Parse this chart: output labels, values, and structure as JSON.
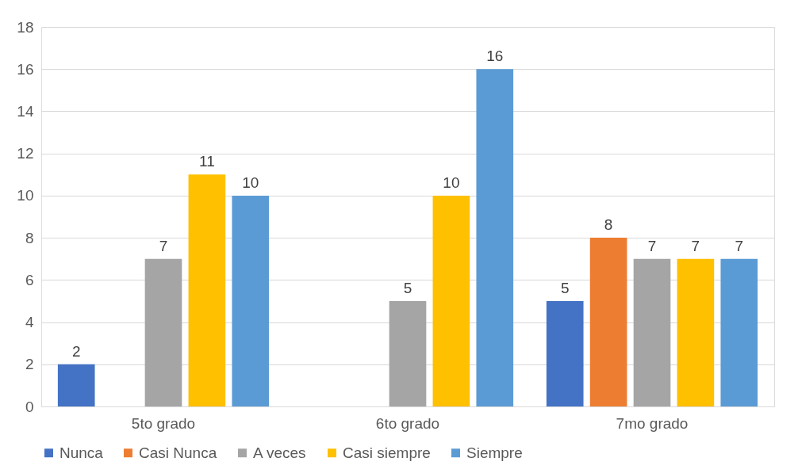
{
  "chart_data": {
    "type": "bar",
    "categories": [
      "5to grado",
      "6to grado",
      "7mo grado"
    ],
    "series": [
      {
        "name": "Nunca",
        "color": "#4472c4",
        "values": [
          2,
          null,
          5
        ]
      },
      {
        "name": "Casi Nunca",
        "color": "#ed7d31",
        "values": [
          null,
          null,
          8
        ]
      },
      {
        "name": "A veces",
        "color": "#a5a5a5",
        "values": [
          7,
          5,
          7
        ]
      },
      {
        "name": "Casi siempre",
        "color": "#ffc000",
        "values": [
          11,
          10,
          7
        ]
      },
      {
        "name": "Siempre",
        "color": "#5b9bd5",
        "values": [
          10,
          16,
          7
        ]
      }
    ],
    "ylim": [
      0,
      18
    ],
    "yticks": [
      0,
      2,
      4,
      6,
      8,
      10,
      12,
      14,
      16,
      18
    ],
    "grid": "y",
    "legend": "bottom",
    "data_labels": true
  }
}
